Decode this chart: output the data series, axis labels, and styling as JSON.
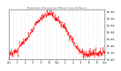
{
  "title": "Barometric Pressure per Minute (Last 24 Hours)",
  "line_color": "#ff0000",
  "bg_color": "#ffffff",
  "plot_bg": "#ffffff",
  "grid_color": "#cccccc",
  "title_color": "#555555",
  "ylim": [
    29.0,
    30.45
  ],
  "ytick_labels": [
    "29.00",
    "29.20",
    "29.40",
    "29.60",
    "29.80",
    "30.00",
    "30.20",
    "30.40"
  ],
  "ytick_vals": [
    29.0,
    29.2,
    29.4,
    29.6,
    29.8,
    30.0,
    30.2,
    30.4
  ],
  "num_points": 1440,
  "num_vgrid": 24,
  "pressure_profile_x": [
    0,
    60,
    120,
    150,
    180,
    240,
    300,
    360,
    390,
    480,
    540,
    600,
    660,
    720,
    780,
    840,
    900,
    960,
    1020,
    1080,
    1140,
    1200,
    1260,
    1320,
    1380,
    1439
  ],
  "pressure_profile_y": [
    29.15,
    29.18,
    29.25,
    29.35,
    29.42,
    29.55,
    29.7,
    29.85,
    30.02,
    30.18,
    30.28,
    30.32,
    30.28,
    30.18,
    30.05,
    29.9,
    29.72,
    29.52,
    29.35,
    29.22,
    29.18,
    29.12,
    29.15,
    29.18,
    29.2,
    29.18
  ],
  "noise_seed": 17,
  "noise_scale": 0.025,
  "noise2_scale": 0.055,
  "noise2_interval": 15
}
